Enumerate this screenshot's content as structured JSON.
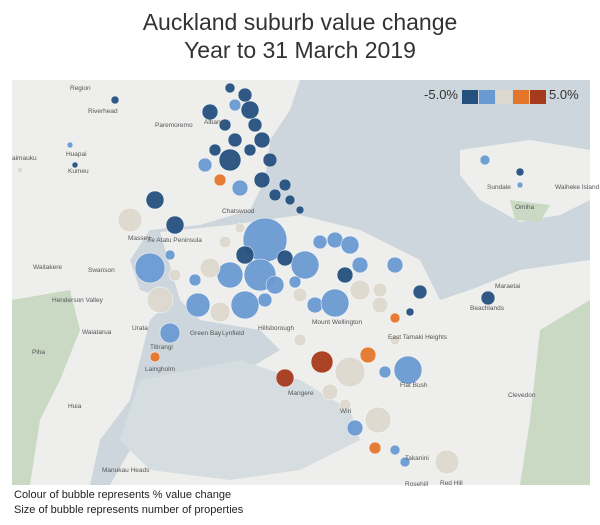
{
  "header": {
    "title": "Auckland suburb value change",
    "subtitle": "Year to 31 March 2019"
  },
  "legend": {
    "min_label": "-5.0%",
    "max_label": "5.0%",
    "colors": [
      "#24507e",
      "#6a9ad2",
      "#dcd8cf",
      "#e4762c",
      "#a63a1c"
    ]
  },
  "places": [
    "Region",
    "Riverhead",
    "Huapai",
    "aimauku",
    "Kumeu",
    "Paremoremo",
    "Albany",
    "Chatswood",
    "Massey",
    "Te Atatu Peninsula",
    "Waitakere",
    "Swanson",
    "Henderson Valley",
    "Waiatarua",
    "Piha",
    "Urata",
    "Green Bay",
    "Titirangi",
    "Lynfield",
    "Hillsborough",
    "Mount Wellington",
    "East Tamaki Heights",
    "Laingholm",
    "Huia",
    "Mangere",
    "Flat Bush",
    "Wiri",
    "Beachlands",
    "Maraetai",
    "Clevedon",
    "Sundale",
    "Waiheke Island",
    "Omiha",
    "Takanini",
    "Manukau Heads",
    "Rosehill",
    "Red Hill"
  ],
  "notes": [
    "Colour of bubble represents % value change",
    "Size of bubble represents number of properties"
  ]
}
